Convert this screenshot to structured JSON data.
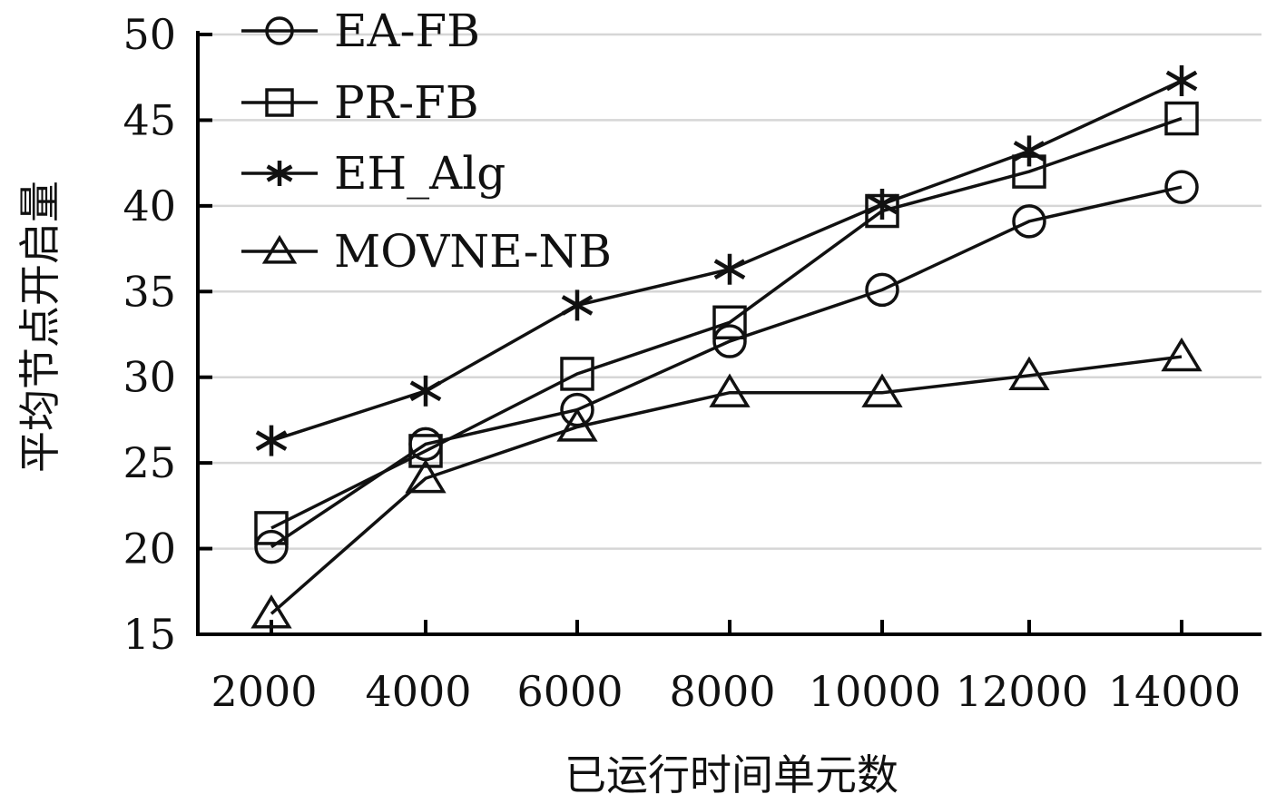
{
  "chart_data": {
    "type": "line",
    "title": "",
    "xlabel": "已运行时间单元数",
    "ylabel": "平均节点开启量",
    "categories": [
      "2000",
      "4000",
      "6000",
      "8000",
      "10000",
      "12000",
      "14000"
    ],
    "ylim": [
      15,
      50
    ],
    "yticks": [
      "15",
      "20",
      "25",
      "30",
      "35",
      "40",
      "45",
      "50"
    ],
    "grid": true,
    "legend_position": "top-left",
    "series": [
      {
        "name": "EA-FB",
        "marker": "circle",
        "values": [
          20.1,
          26.1,
          28.1,
          32.1,
          35.1,
          39.1,
          41.1
        ]
      },
      {
        "name": "PR-FB",
        "marker": "square",
        "values": [
          21.2,
          25.7,
          30.2,
          33.2,
          39.7,
          42.0,
          45.1
        ]
      },
      {
        "name": "EH_Alg",
        "marker": "star",
        "values": [
          26.3,
          29.2,
          34.2,
          36.3,
          40.1,
          43.2,
          47.3
        ]
      },
      {
        "name": "MOVNE-NB",
        "marker": "triangle",
        "values": [
          16.2,
          24.1,
          27.1,
          29.1,
          29.1,
          30.1,
          31.2
        ]
      }
    ],
    "colors": {
      "line": "#111111",
      "grid": "#d6d6d6",
      "axis": "#000000"
    }
  }
}
